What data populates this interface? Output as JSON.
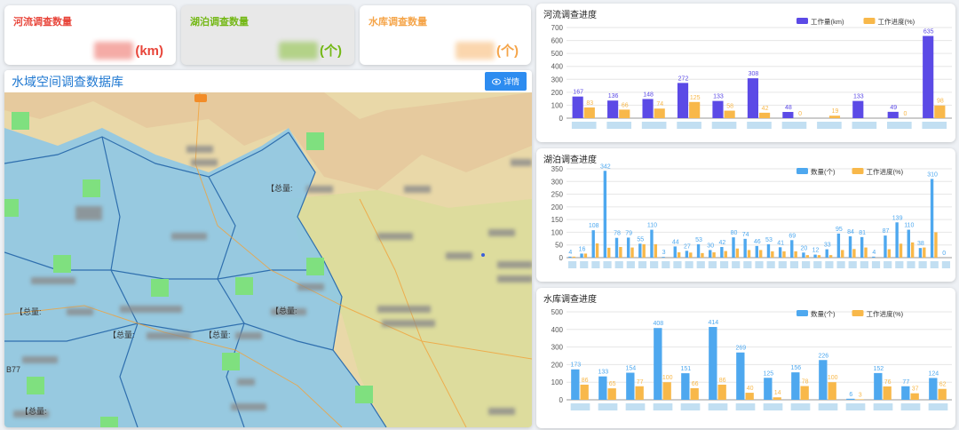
{
  "stats": {
    "river": {
      "title": "河流调查数量",
      "unit": "(km)",
      "color": "#e8463b"
    },
    "lake": {
      "title": "湖泊调查数量",
      "unit": "(个)",
      "color": "#74b816"
    },
    "reservoir": {
      "title": "水库调查数量",
      "unit": "(个)",
      "color": "#f5a54a"
    }
  },
  "map": {
    "title": "水域空间调查数据库",
    "detail_button": "详情",
    "total_labels": [
      "【总量:",
      "【总量:",
      "【总量:",
      "【总量:",
      "【总量:",
      "【总量:"
    ],
    "road_label": "B77"
  },
  "chart_data": [
    {
      "type": "bar",
      "title": "河流调查进度",
      "series": [
        {
          "name": "工作量(km)",
          "color": "#5b4ae6",
          "values": [
            167,
            136,
            148,
            272,
            133,
            308,
            48,
            0,
            133,
            49,
            635
          ]
        },
        {
          "name": "工作进度(%)",
          "color": "#f8b84a",
          "values": [
            83,
            66,
            74,
            125,
            58,
            42,
            0,
            19,
            0,
            0,
            98
          ]
        }
      ],
      "series_labels": [
        [
          "167",
          "136",
          "148",
          "272",
          "133",
          "308",
          "48",
          "",
          "133",
          "49",
          "635"
        ],
        [
          "83",
          "66",
          "74",
          "125",
          "58",
          "42",
          "0",
          "19",
          "",
          "0",
          "98"
        ]
      ],
      "ylim": [
        0,
        700
      ],
      "yticks": [
        0,
        100,
        200,
        300,
        400,
        500,
        600,
        700
      ],
      "grid": true,
      "legend": "top-right"
    },
    {
      "type": "bar",
      "title": "湖泊调查进度",
      "series": [
        {
          "name": "数量(个)",
          "color": "#4ea8ef",
          "values": [
            4,
            16,
            108,
            342,
            78,
            79,
            55,
            110,
            3,
            44,
            27,
            53,
            30,
            42,
            80,
            74,
            46,
            53,
            41,
            69,
            20,
            12,
            33,
            95,
            84,
            81,
            4,
            87,
            139,
            110,
            38,
            310,
            0
          ]
        },
        {
          "name": "工作进度(%)",
          "color": "#f8b84a",
          "values": [
            4,
            16,
            56,
            39,
            42,
            40,
            53,
            53,
            0,
            21,
            20,
            18,
            21,
            26,
            36,
            30,
            30,
            25,
            25,
            25,
            10,
            10,
            10,
            30,
            34,
            40,
            0,
            33,
            55,
            60,
            40,
            100,
            0
          ]
        }
      ],
      "series_labels": [
        [
          "4",
          "16",
          "108",
          "342",
          "78",
          "79",
          "55",
          "110",
          "3",
          "44",
          "27",
          "53",
          "30",
          "42",
          "80",
          "74",
          "46",
          "53",
          "41",
          "69",
          "20",
          "12",
          "33",
          "95",
          "84",
          "81",
          "4",
          "87",
          "139",
          "110",
          "38",
          "310",
          "0"
        ],
        []
      ],
      "ylim": [
        0,
        350
      ],
      "yticks": [
        0,
        50,
        100,
        150,
        200,
        250,
        300,
        350
      ],
      "grid": true,
      "legend": "top-right"
    },
    {
      "type": "bar",
      "title": "水库调查进度",
      "series": [
        {
          "name": "数量(个)",
          "color": "#4ea8ef",
          "values": [
            173,
            133,
            154,
            408,
            151,
            414,
            269,
            125,
            156,
            226,
            6,
            152,
            77,
            124
          ]
        },
        {
          "name": "工作进度(%)",
          "color": "#f8b84a",
          "values": [
            86,
            65,
            77,
            100,
            66,
            86,
            40,
            14,
            78,
            100,
            3,
            76,
            37,
            62
          ]
        }
      ],
      "series_labels": [
        [
          "173",
          "133",
          "154",
          "408",
          "151",
          "414",
          "269",
          "125",
          "156",
          "226",
          "6",
          "152",
          "77",
          "124"
        ],
        [
          "86",
          "65",
          "77",
          "100",
          "66",
          "86",
          "40",
          "14",
          "78",
          "100",
          "3",
          "76",
          "37",
          "62"
        ]
      ],
      "ylim": [
        0,
        500
      ],
      "yticks": [
        0,
        100,
        200,
        300,
        400,
        500
      ],
      "grid": true,
      "legend": "top-right"
    }
  ]
}
